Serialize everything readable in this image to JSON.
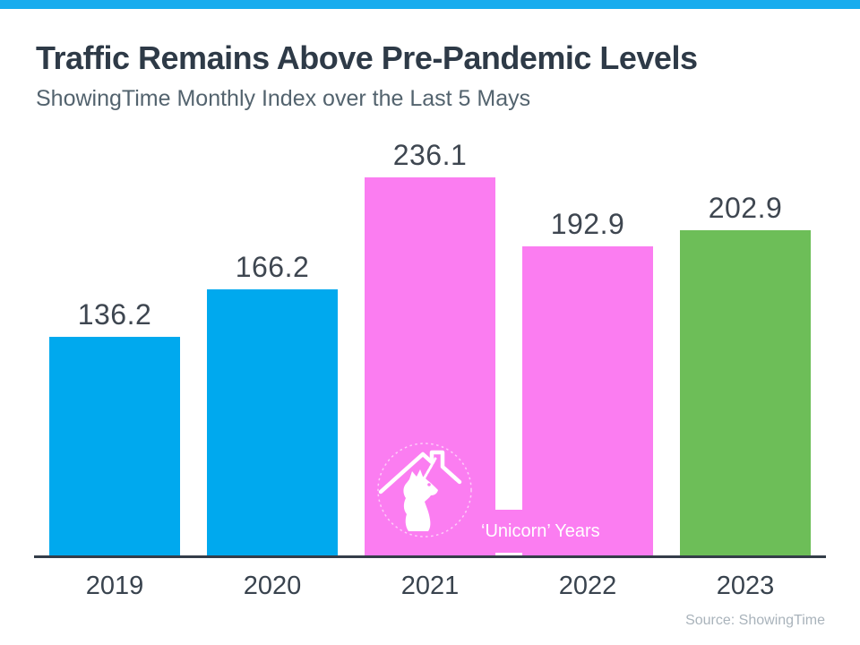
{
  "header": {
    "title": "Traffic Remains Above Pre-Pandemic Levels",
    "subtitle": "ShowingTime Monthly Index over the Last 5 Mays"
  },
  "chart_data": {
    "type": "bar",
    "title": "Traffic Remains Above Pre-Pandemic Levels",
    "subtitle": "ShowingTime Monthly Index over the Last 5 Mays",
    "categories": [
      "2019",
      "2020",
      "2021",
      "2022",
      "2023"
    ],
    "values": [
      136.2,
      166.2,
      236.1,
      192.9,
      202.9
    ],
    "value_labels": [
      "136.2",
      "166.2",
      "236.1",
      "192.9",
      "202.9"
    ],
    "bar_colors": [
      "#00a9ee",
      "#00a9ee",
      "#fb7df1",
      "#fb7df1",
      "#6dbe58"
    ],
    "ylim": [
      0,
      250
    ],
    "grid": false,
    "legend": "none",
    "annotation": {
      "label": "‘Unicorn’ Years",
      "applies_to": [
        "2021",
        "2022"
      ],
      "icon": "unicorn-house-icon",
      "background": "#fb7df1",
      "text_color": "#ffffff"
    }
  },
  "footer": {
    "source": "Source: ShowingTime"
  },
  "colors": {
    "top_accent_bar": "#18acee",
    "title_text": "#2e3a47",
    "subtitle_text": "#53636e",
    "value_label_text": "#3e4650",
    "x_label_text": "#39434e",
    "axis_line": "#343d49",
    "source_text": "#a9b3bb",
    "background": "#ffffff"
  }
}
